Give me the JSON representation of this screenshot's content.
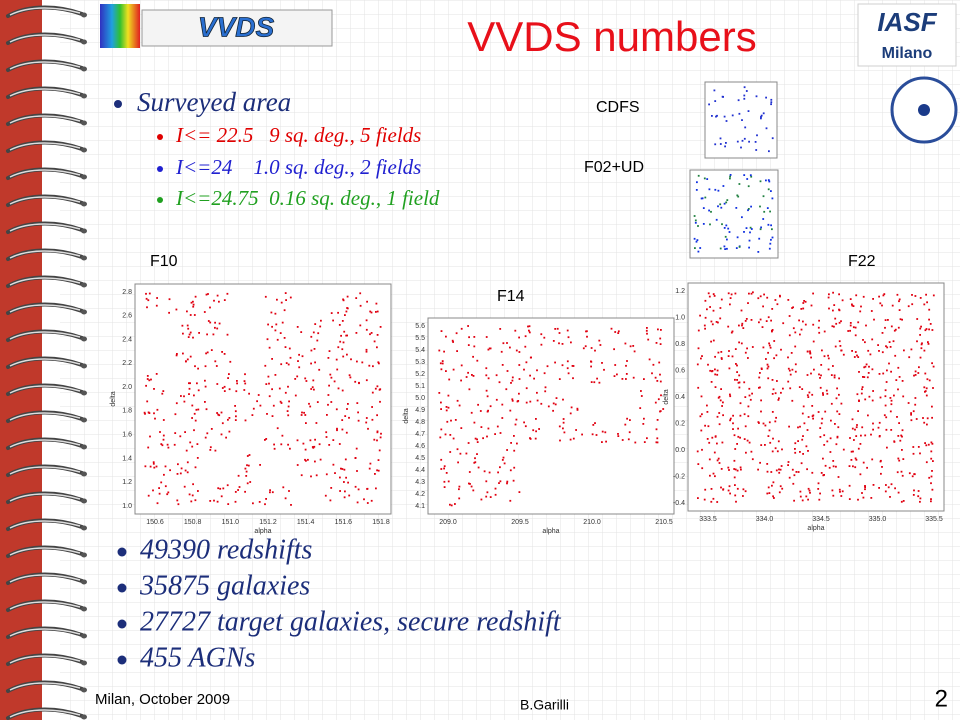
{
  "title": "VVDS numbers",
  "logos": {
    "left": "VVDS",
    "right": "IASF",
    "right_sub": "Milano"
  },
  "surveyed": {
    "heading": "Surveyed area",
    "items": [
      "I<= 22.5   9 sq. deg., 5 fields",
      "I<=24    1.0 sq. deg., 2 fields",
      "I<=24.75  0.16 sq. deg., 1 field"
    ]
  },
  "fields": [
    {
      "label": "CDFS"
    },
    {
      "label": "F02+UD"
    },
    {
      "label": "F10",
      "xlabel": "alpha",
      "ylabel": "delta",
      "xticks": [
        "150.6",
        "150.8",
        "151.0",
        "151.2",
        "151.4",
        "151.6",
        "151.8"
      ],
      "yticks": [
        "1.0",
        "1.2",
        "1.4",
        "1.6",
        "1.8",
        "2.0",
        "2.2",
        "2.4",
        "2.6",
        "2.8"
      ]
    },
    {
      "label": "F14",
      "xlabel": "alpha",
      "ylabel": "delta",
      "xticks": [
        "209.0",
        "209.5",
        "210.0",
        "210.5"
      ],
      "yticks": [
        "4.1",
        "4.2",
        "4.3",
        "4.4",
        "4.5",
        "4.6",
        "4.7",
        "4.8",
        "4.9",
        "5.0",
        "5.1",
        "5.2",
        "5.3",
        "5.4",
        "5.5",
        "5.6"
      ]
    },
    {
      "label": "F22",
      "xlabel": "alpha",
      "ylabel": "delta",
      "xticks": [
        "333.5",
        "334.0",
        "334.5",
        "335.0",
        "335.5"
      ],
      "yticks": [
        "-0.4",
        "-0.2",
        "0.0",
        "0.2",
        "0.4",
        "0.6",
        "0.8",
        "1.0",
        "1.2"
      ]
    }
  ],
  "stats": [
    "49390 redshifts",
    "35875 galaxies",
    "27727 target galaxies, secure redshift",
    "455 AGNs"
  ],
  "footer": {
    "left": "Milan, October 2009",
    "center": "B.Garilli",
    "page": "2"
  }
}
